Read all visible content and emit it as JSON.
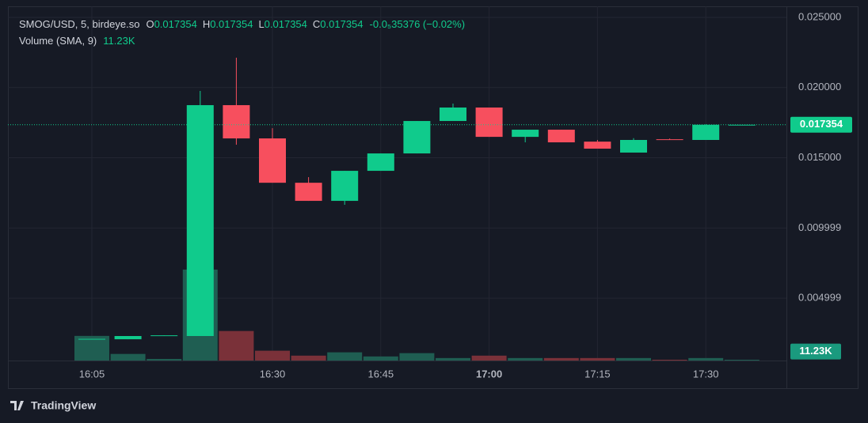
{
  "chart_data": {
    "type": "candlestick",
    "symbol": "SMOG/USD, 5, birdeye.so",
    "ohlc_labels": [
      "O",
      "H",
      "L",
      "C"
    ],
    "change": "-0.0₅35376 (−0.02%)",
    "volume_title": "Volume (SMA, 9)",
    "volume_sma": {
      "value": 11230,
      "label": "11.23K"
    },
    "last_price": 0.017354,
    "brand": "TradingView",
    "categories": [
      "16:05",
      null,
      null,
      null,
      null,
      "16:30",
      null,
      null,
      "16:45",
      null,
      null,
      "17:00",
      null,
      null,
      "17:15",
      null,
      null,
      "17:30",
      null
    ],
    "open": [
      0.00207,
      0.00207,
      0.00233,
      0.0023,
      0.01875,
      0.01638,
      0.01322,
      0.01193,
      0.01407,
      0.01531,
      0.01762,
      0.01858,
      0.01649,
      0.017,
      0.01615,
      0.01537,
      0.01632,
      0.01627,
      0.017354
    ],
    "high": [
      0.0021,
      0.0023,
      0.00235,
      0.01976,
      0.02213,
      0.01711,
      0.01362,
      0.01407,
      0.01531,
      0.01762,
      0.01886,
      0.01858,
      0.017,
      0.017,
      0.01627,
      0.0164,
      0.01637,
      0.01739,
      0.017354
    ],
    "low": [
      0.00205,
      0.00207,
      0.00233,
      0.0023,
      0.01593,
      0.01322,
      0.01193,
      0.01165,
      0.01407,
      0.01531,
      0.01762,
      0.01649,
      0.0161,
      0.0161,
      0.01565,
      0.01537,
      0.01627,
      0.01627,
      0.017354
    ],
    "close": [
      0.0021,
      0.0023,
      0.00235,
      0.01875,
      0.01638,
      0.01322,
      0.01193,
      0.01407,
      0.01531,
      0.01762,
      0.01858,
      0.01649,
      0.017,
      0.0161,
      0.01565,
      0.01627,
      0.01627,
      0.017354,
      0.017354
    ],
    "volume": [
      30600,
      8200,
      2000,
      113000,
      36700,
      12200,
      6100,
      10200,
      5100,
      9200,
      3100,
      6100,
      3100,
      3100,
      3100,
      3100,
      1000,
      3100,
      1000
    ],
    "ylim": [
      0.000554,
      0.02579
    ],
    "volume_lim": [
      0,
      440000
    ],
    "yticks": [
      {
        "value": 0.025,
        "label": "0.025000"
      },
      {
        "value": 0.02,
        "label": "0.020000"
      },
      {
        "value": 0.015,
        "label": "0.015000"
      },
      0.009999,
      0.004999
    ],
    "up_color": "#10cb8c",
    "down_color": "#f74f5e",
    "volume_up_color": "#1f5e52",
    "volume_down_color": "#7a3139",
    "grid": true
  }
}
